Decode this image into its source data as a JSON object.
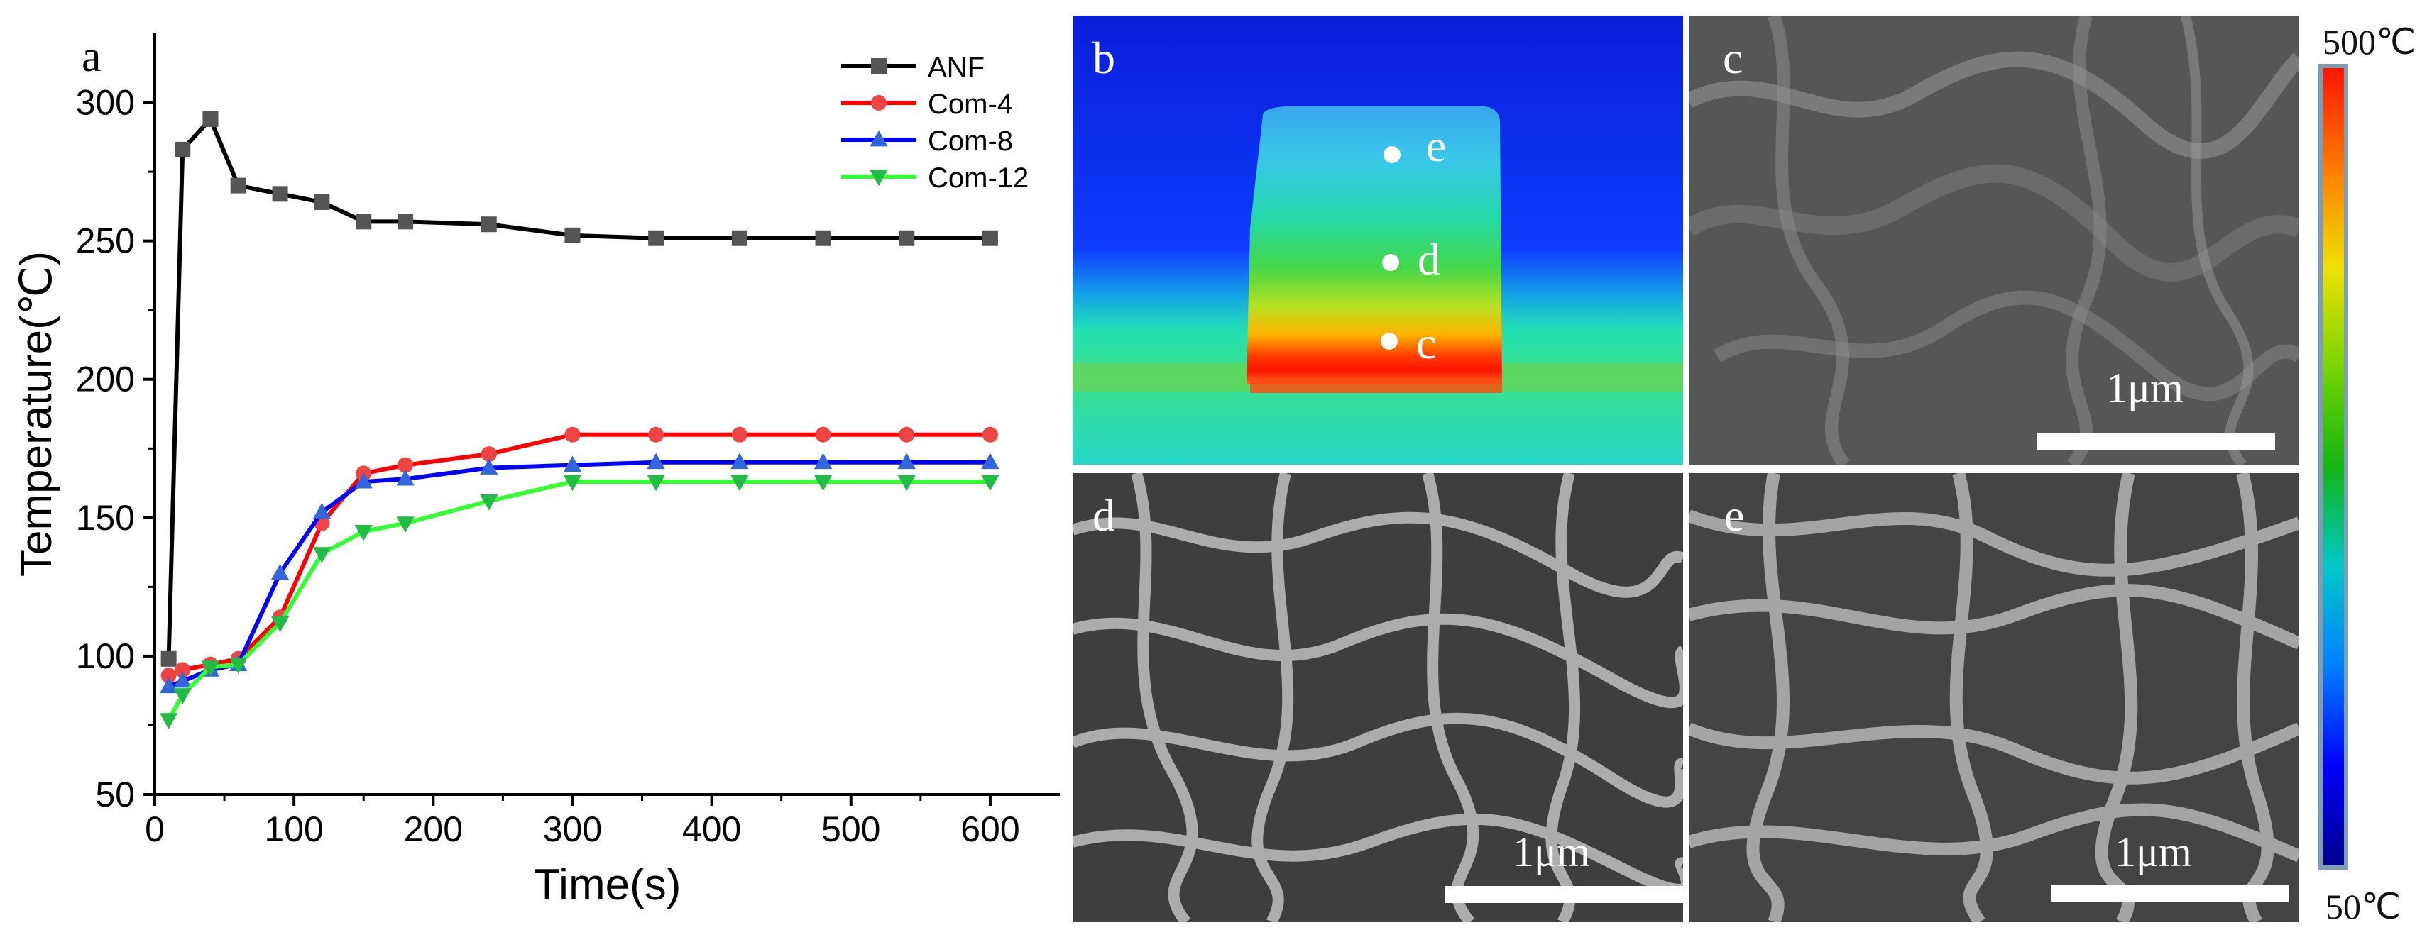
{
  "chart_data": {
    "type": "line",
    "panel_label": "a",
    "xlabel": "Time(s)",
    "ylabel": "Temperature(℃)",
    "xlim": [
      0,
      650
    ],
    "ylim": [
      50,
      325
    ],
    "xticks": [
      0,
      100,
      200,
      300,
      400,
      500,
      600
    ],
    "yticks": [
      50,
      100,
      150,
      200,
      250,
      300
    ],
    "legend_position": "top-right",
    "grid": false,
    "series": [
      {
        "name": "ANF",
        "color": "#000000",
        "marker_color": "#555555",
        "marker": "square",
        "x": [
          10,
          20,
          40,
          60,
          90,
          120,
          150,
          180,
          240,
          300,
          360,
          420,
          480,
          540,
          600
        ],
        "y": [
          99,
          283,
          294,
          270,
          267,
          264,
          257,
          257,
          256,
          252,
          251,
          251,
          251,
          251,
          251
        ]
      },
      {
        "name": "Com-4",
        "color": "#ff0000",
        "marker_color": "#ee4444",
        "marker": "circle",
        "x": [
          10,
          20,
          40,
          60,
          90,
          120,
          150,
          180,
          240,
          300,
          360,
          420,
          480,
          540,
          600
        ],
        "y": [
          93,
          95,
          97,
          99,
          114,
          148,
          166,
          169,
          173,
          180,
          180,
          180,
          180,
          180,
          180
        ]
      },
      {
        "name": "Com-8",
        "color": "#0000ff",
        "marker_color": "#3366dd",
        "marker": "triangle-up",
        "x": [
          10,
          20,
          40,
          60,
          90,
          120,
          150,
          180,
          240,
          300,
          360,
          420,
          480,
          540,
          600
        ],
        "y": [
          89,
          91,
          95,
          97,
          130,
          152,
          163,
          164,
          168,
          169,
          170,
          170,
          170,
          170,
          170
        ]
      },
      {
        "name": "Com-12",
        "color": "#33ff33",
        "marker_color": "#22bb44",
        "marker": "triangle-down",
        "x": [
          10,
          20,
          40,
          60,
          90,
          120,
          150,
          180,
          240,
          300,
          360,
          420,
          480,
          540,
          600
        ],
        "y": [
          77,
          86,
          96,
          97,
          112,
          137,
          145,
          148,
          156,
          163,
          163,
          163,
          163,
          163,
          163
        ]
      }
    ]
  },
  "thermal_image": {
    "label": "b",
    "point_labels": [
      "e",
      "d",
      "c"
    ]
  },
  "sem_images": [
    {
      "label": "c",
      "scale": "1μm"
    },
    {
      "label": "d",
      "scale": "1μm"
    },
    {
      "label": "e",
      "scale": "1μm"
    }
  ],
  "colorbar": {
    "max_label": "500℃",
    "min_label": "50℃",
    "colors": [
      "#ff1500",
      "#ff7a00",
      "#f0e000",
      "#78d400",
      "#14b414",
      "#00c8c8",
      "#0080ff",
      "#0000ff",
      "#00008c"
    ]
  }
}
